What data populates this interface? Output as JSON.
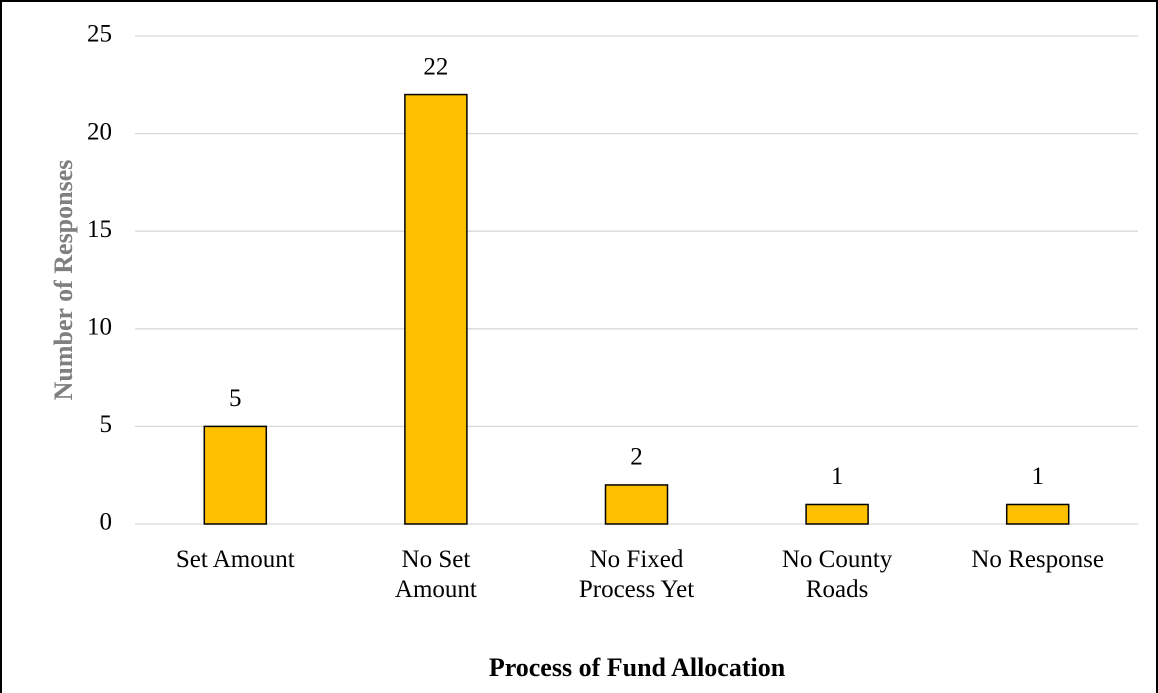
{
  "chart_data": {
    "type": "bar",
    "categories": [
      "Set Amount",
      "No Set\nAmount",
      "No Fixed\nProcess Yet",
      "No County\nRoads",
      "No Response"
    ],
    "values": [
      5,
      22,
      2,
      1,
      1
    ],
    "color": "#ffc000",
    "ylim": [
      0,
      25
    ],
    "yticks": [
      0,
      5,
      10,
      15,
      20,
      25
    ],
    "grid": true,
    "ylabel": "Number of Responses",
    "xlabel": "Process of Fund Allocation"
  }
}
